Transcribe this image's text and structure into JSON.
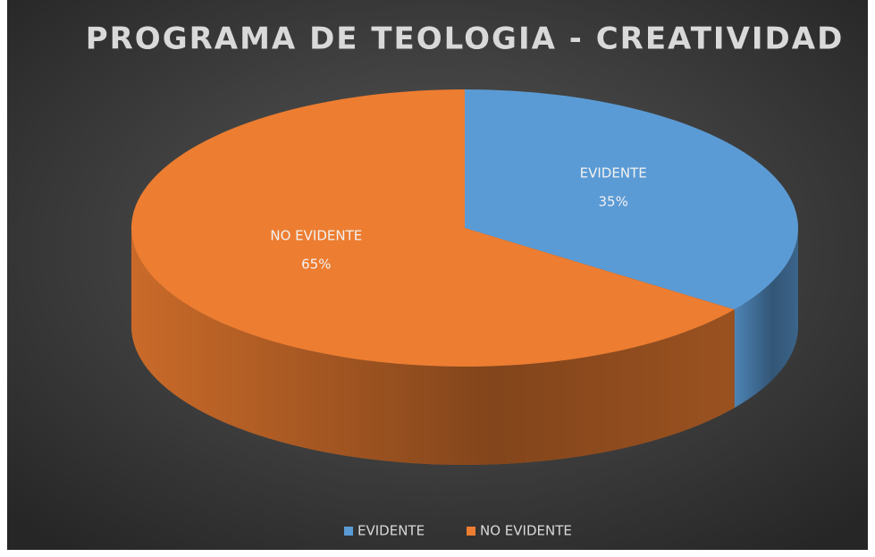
{
  "chart_data": {
    "type": "pie3d",
    "title": "PROGRAMA DE TEOLOGIA - CREATIVIDAD",
    "categories": [
      "EVIDENTE",
      "NO EVIDENTE"
    ],
    "values": [
      35,
      65
    ],
    "value_labels": [
      "35%",
      "65%"
    ],
    "colors": [
      "#5b9bd5",
      "#ed7d31"
    ],
    "legend": "bottom"
  }
}
